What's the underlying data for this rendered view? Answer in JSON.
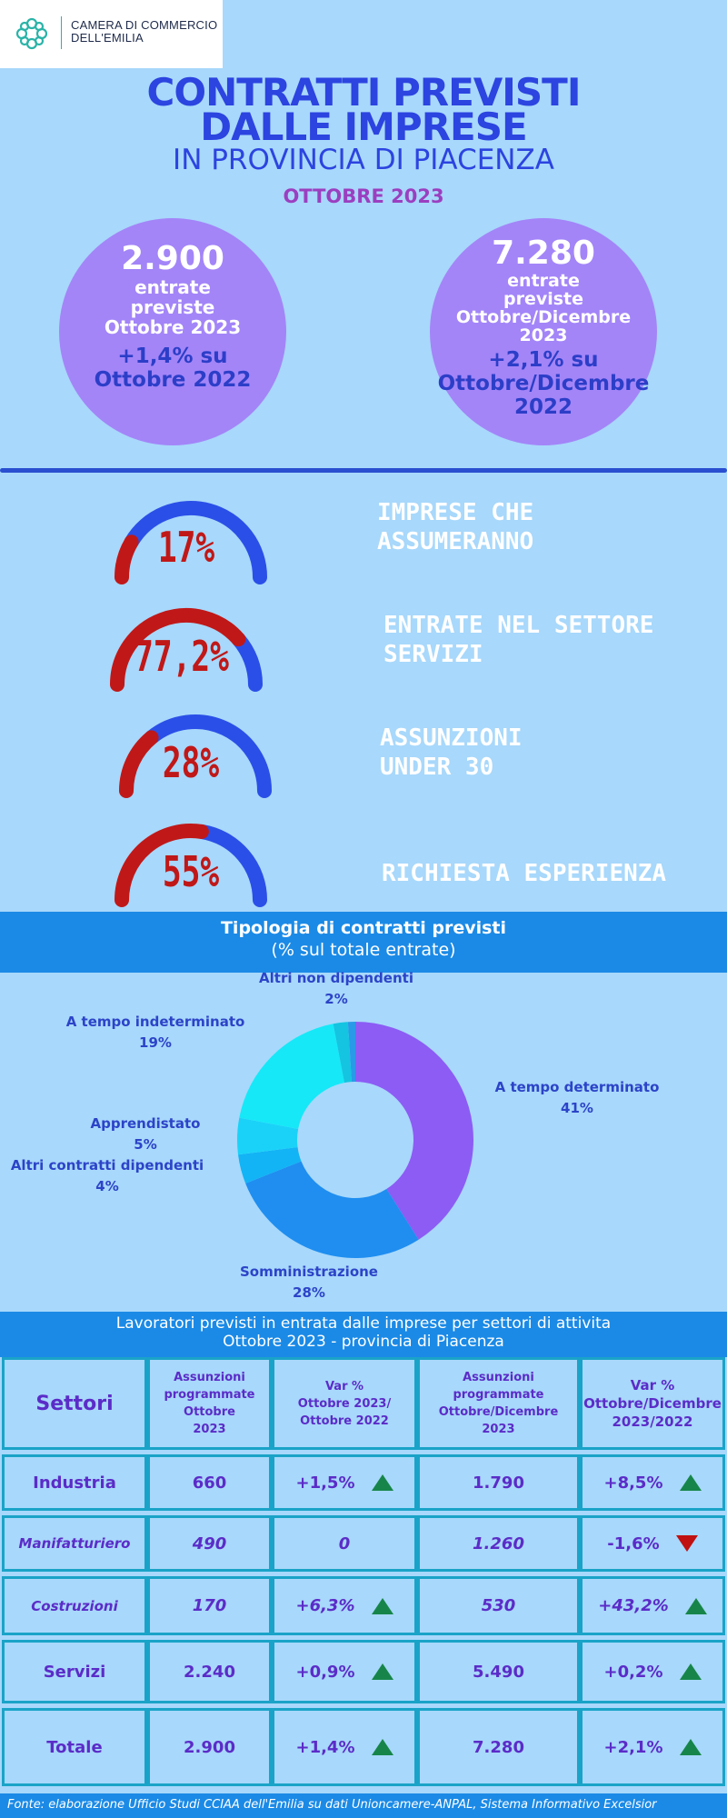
{
  "header": {
    "org_line1": "CAMERA DI COMMERCIO",
    "org_line2": "DELL'EMILIA",
    "title_line1": "CONTRATTI PREVISTI",
    "title_line2": "DALLE IMPRESE",
    "subtitle": "IN PROVINCIA DI PIACENZA",
    "date": "OTTOBRE 2023"
  },
  "bubbles": [
    {
      "number": "2.900",
      "line1": "entrate",
      "line2": "previste",
      "line3": "Ottobre 2023",
      "var1": "+1,4% su",
      "var2": "Ottobre  2022"
    },
    {
      "number": "7.280",
      "line1": "entrate",
      "line2": "previste",
      "line3": "Ottobre/Dicembre",
      "line4": "2023",
      "var1": "+2,1% su",
      "var2": "Ottobre/Dicembre",
      "var3": "2022"
    }
  ],
  "gauges": [
    {
      "pct": "17%",
      "value": 0.17,
      "label1": "IMPRESE CHE",
      "label2": "ASSUMERANNO"
    },
    {
      "pct": "77,2%",
      "value": 0.772,
      "label1": "ENTRATE NEL SETTORE",
      "label2": "SERVIZI"
    },
    {
      "pct": "28%",
      "value": 0.28,
      "label1": "ASSUNZIONI",
      "label2": "UNDER 30"
    },
    {
      "pct": "55%",
      "value": 0.55,
      "label1": "RICHIESTA ESPERIENZA"
    }
  ],
  "colors": {
    "background": "#a8d8fb",
    "title_blue": "#2c44e0",
    "bubble": "#a385f8",
    "gauge_red": "#c01818",
    "gauge_blue": "#2a4fe8",
    "band_blue": "#1b8ae6",
    "up_green": "#17854a",
    "down_red": "#c01010"
  },
  "contracts": {
    "title": "Tipologia di contratti previsti",
    "subtitle": "(% sul totale entrate)"
  },
  "chart_data": {
    "type": "pie",
    "donut": true,
    "series": [
      {
        "name": "A tempo determinato",
        "value": 41,
        "label": "41%",
        "color": "#8c5cf5"
      },
      {
        "name": "Somministrazione",
        "value": 28,
        "label": "28%",
        "color": "#1f8ef0"
      },
      {
        "name": "Altri contratti dipendenti",
        "value": 4,
        "label": "4%",
        "color": "#12b4f5"
      },
      {
        "name": "Apprendistato",
        "value": 5,
        "label": "5%",
        "color": "#1ad2f8"
      },
      {
        "name": "A tempo indeterminato",
        "value": 19,
        "label": "19%",
        "color": "#16e8f8"
      },
      {
        "name": "Altri non dipendenti",
        "value": 2,
        "label": "2%",
        "color": "#14c4e0"
      },
      {
        "name": "",
        "value": 1,
        "label": "",
        "color": "#2a9ae8"
      }
    ]
  },
  "table": {
    "title1": "Lavoratori previsti in entrata dalle imprese per settori di attivita",
    "title2": "Ottobre 2023 - provincia di Piacenza",
    "headers": {
      "settori": "Settori",
      "assunz_ott_1": "Assunzioni",
      "assunz_ott_2": "programmate",
      "assunz_ott_3": "Ottobre",
      "assunz_ott_4": "2023",
      "var_ott_1": "Var %",
      "var_ott_2": "Ottobre 2023/",
      "var_ott_3": "Ottobre 2022",
      "assunz_od_1": "Assunzioni",
      "assunz_od_2": "programmate",
      "assunz_od_3": "Ottobre/Dicembre",
      "assunz_od_4": "2023",
      "var_od_1": "Var %",
      "var_od_2": "Ottobre/Dicembre",
      "var_od_3": "2023/2022"
    },
    "rows": [
      {
        "sector": "Industria",
        "a_ott": "660",
        "v_ott": "+1,5%",
        "t_ott": "up",
        "a_od": "1.790",
        "v_od": "+8,5%",
        "t_od": "up"
      },
      {
        "sector": "Manifatturiero",
        "a_ott": "490",
        "v_ott": "0",
        "t_ott": "none",
        "a_od": "1.260",
        "v_od": "-1,6%",
        "t_od": "down"
      },
      {
        "sector": "Costruzioni",
        "a_ott": "170",
        "v_ott": "+6,3%",
        "t_ott": "up",
        "a_od": "530",
        "v_od": "+43,2%",
        "t_od": "up"
      },
      {
        "sector": "Servizi",
        "a_ott": "2.240",
        "v_ott": "+0,9%",
        "t_ott": "up",
        "a_od": "5.490",
        "v_od": "+0,2%",
        "t_od": "up"
      },
      {
        "sector": "Totale",
        "a_ott": "2.900",
        "v_ott": "+1,4%",
        "t_ott": "up",
        "a_od": "7.280",
        "v_od": "+2,1%",
        "t_od": "up"
      }
    ]
  },
  "footer": "Fonte: elaborazione Ufficio Studi CCIAA dell'Emilia su dati Unioncamere-ANPAL, Sistema Informativo Excelsior"
}
